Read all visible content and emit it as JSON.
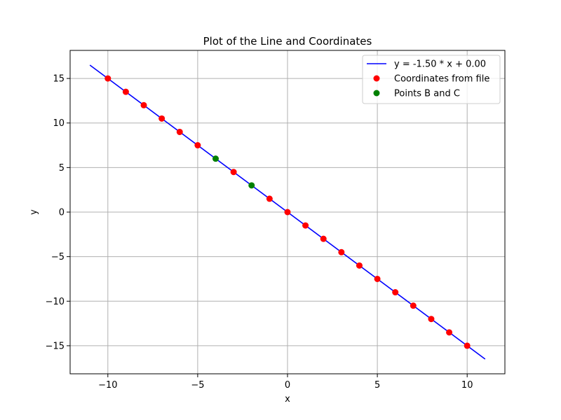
{
  "chart_data": {
    "type": "scatter",
    "title": "Plot of the Line and Coordinates",
    "xlabel": "x",
    "ylabel": "y",
    "xlim": [
      -12.1,
      12.1
    ],
    "ylim": [
      -18.15,
      18.15
    ],
    "xticks": [
      -10,
      -5,
      0,
      5,
      10
    ],
    "yticks": [
      -15,
      -10,
      -5,
      0,
      5,
      10,
      15
    ],
    "xtick_labels": [
      "−10",
      "−5",
      "0",
      "5",
      "10"
    ],
    "ytick_labels": [
      "−15",
      "−10",
      "−5",
      "0",
      "5",
      "10",
      "15"
    ],
    "grid": true,
    "legend_position": "top-right",
    "series": [
      {
        "name": "y = -1.50 * x + 0.00",
        "kind": "line",
        "color": "#0000ff",
        "x": [
          -11,
          11
        ],
        "y": [
          16.5,
          -16.5
        ]
      },
      {
        "name": "Coordinates from file",
        "kind": "scatter",
        "color": "#ff0000",
        "x": [
          -10,
          -9,
          -8,
          -7,
          -6,
          -5,
          -3,
          -1,
          0,
          1,
          2,
          3,
          4,
          5,
          6,
          7,
          8,
          9,
          10
        ],
        "y": [
          15,
          13.5,
          12,
          10.5,
          9,
          7.5,
          4.5,
          1.5,
          0,
          -1.5,
          -3,
          -4.5,
          -6,
          -7.5,
          -9,
          -10.5,
          -12,
          -13.5,
          -15
        ]
      },
      {
        "name": "Points B and C",
        "kind": "scatter",
        "color": "#008000",
        "x": [
          -4,
          -2
        ],
        "y": [
          6,
          3
        ]
      }
    ]
  }
}
